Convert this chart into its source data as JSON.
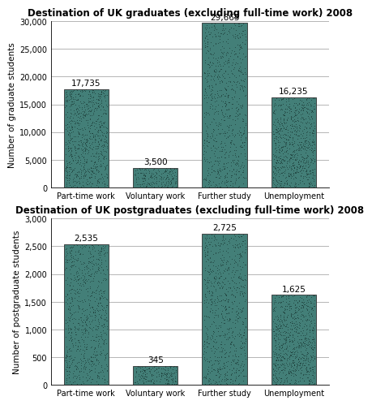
{
  "chart1": {
    "title": "Destination of UK graduates (excluding full-time work) 2008",
    "categories": [
      "Part-time work",
      "Voluntary work",
      "Further study",
      "Unemployment"
    ],
    "values": [
      17735,
      3500,
      29665,
      16235
    ],
    "labels": [
      "17,735",
      "3,500",
      "29,665",
      "16,235"
    ],
    "ylabel": "Number of graduate students",
    "ylim": [
      0,
      30000
    ],
    "yticks": [
      0,
      5000,
      10000,
      15000,
      20000,
      25000,
      30000
    ],
    "ytick_labels": [
      "0",
      "5,000",
      "10,000",
      "15,000",
      "20,000",
      "25,000",
      "30,000"
    ]
  },
  "chart2": {
    "title": "Destination of UK postgraduates (excluding full-time work) 2008",
    "categories": [
      "Part-time work",
      "Voluntary work",
      "Further study",
      "Unemployment"
    ],
    "values": [
      2535,
      345,
      2725,
      1625
    ],
    "labels": [
      "2,535",
      "345",
      "2,725",
      "1,625"
    ],
    "ylabel": "Number of postgraduate students",
    "ylim": [
      0,
      3000
    ],
    "yticks": [
      0,
      500,
      1000,
      1500,
      2000,
      2500,
      3000
    ],
    "ytick_labels": [
      "0",
      "500",
      "1,000",
      "1,500",
      "2,000",
      "2,500",
      "3,000"
    ]
  },
  "bar_color": "#437f78",
  "bar_edge_color": "#333333",
  "bg_color": "#ffffff",
  "title_fontsize": 8.5,
  "label_fontsize": 7.5,
  "tick_fontsize": 7,
  "ylabel_fontsize": 7.5
}
